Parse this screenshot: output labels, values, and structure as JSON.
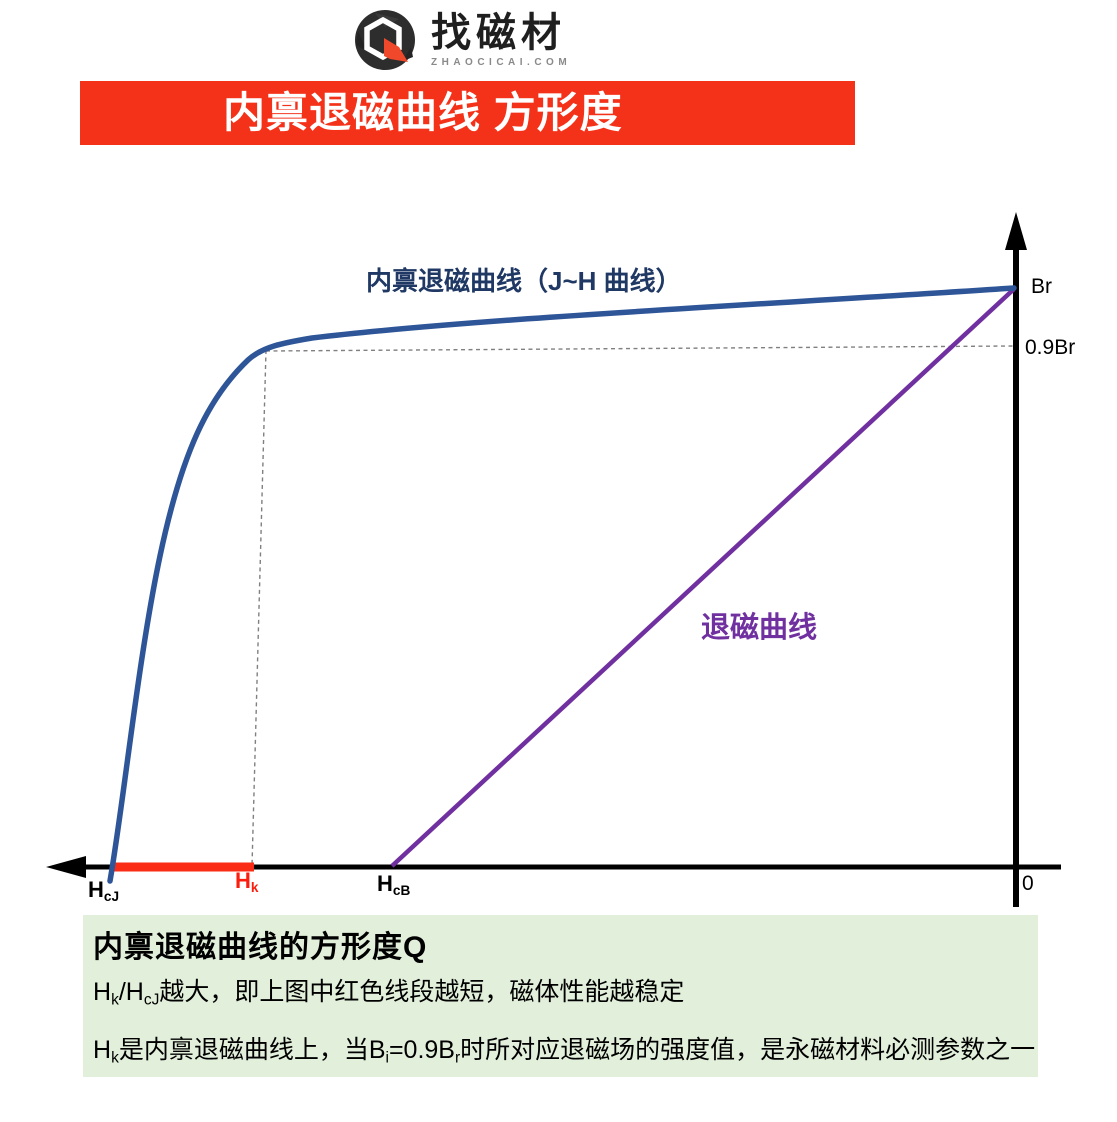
{
  "logo": {
    "brand": "找磁材",
    "domain": "ZHAOCICAI.COM",
    "icon": "hex-cube-logo",
    "colors": {
      "dark": "#2d2d2d",
      "red": "#f0482a"
    }
  },
  "banner": {
    "title": "内禀退磁曲线 方形度",
    "bg": "#f43119",
    "fg": "#ffffff"
  },
  "chart": {
    "labels": {
      "jh_curve": "内禀退磁曲线（J~H 曲线）",
      "demag_curve": "退磁曲线",
      "br": "Br",
      "p9br": "0.9Br",
      "zero": "0",
      "hcj": {
        "main": "H",
        "sub": "cJ"
      },
      "hk": {
        "main": "H",
        "sub": "k"
      },
      "hcb": {
        "main": "H",
        "sub": "cB"
      }
    },
    "colors": {
      "jh_curve": "#2e5597",
      "jh_label": "#1f3864",
      "demag_line": "#7030a0",
      "axis": "#000000",
      "red_segment": "#fb2c16",
      "dashed_guide": "#808080"
    }
  },
  "chart_data": {
    "type": "line",
    "title": "内禀退磁曲线 方形度",
    "orientation": "demagnetizing field H increases to the left; origin (0) at right where both curves meet vertical axis",
    "x_ticks": [
      "HcJ",
      "Hk",
      "HcB",
      "0"
    ],
    "y_ticks": [
      "Br",
      "0.9Br"
    ],
    "x_tick_positions_H_over_HcJ": {
      "HcJ": 1.0,
      "Hk": 0.85,
      "HcB": 0.69,
      "0": 0
    },
    "series": [
      {
        "name": "内禀退磁曲线（J~H 曲线）",
        "color": "#2e5597",
        "units": "x = H/HcJ, y = J/Br",
        "points": [
          [
            1.0,
            0
          ],
          [
            0.98,
            0.32
          ],
          [
            0.95,
            0.55
          ],
          [
            0.92,
            0.73
          ],
          [
            0.88,
            0.82
          ],
          [
            0.83,
            0.9
          ],
          [
            0.68,
            0.94
          ],
          [
            0.35,
            0.97
          ],
          [
            0,
            1.0
          ]
        ]
      },
      {
        "name": "退磁曲线",
        "color": "#7030a0",
        "units": "x = H/HcJ, y = B/Br",
        "shape": "straight",
        "points": [
          [
            0.69,
            0
          ],
          [
            0,
            1.0
          ]
        ]
      }
    ],
    "annotations": [
      "red highlighted segment on H axis from HcJ to Hk",
      "dashed guide lines from knee point (Hk, 0.9Br) to the H axis and to the vertical axis"
    ],
    "legend_position": "labels placed next to curves",
    "grid": false
  },
  "notes": {
    "bg": "#e2efda",
    "title": "内禀退磁曲线的方形度Q",
    "line2": [
      {
        "t": "H"
      },
      {
        "t": "k",
        "sub": true
      },
      {
        "t": "/H"
      },
      {
        "t": "cJ",
        "sub": true
      },
      {
        "t": "越大，即上图中红色线段越短，磁体性能越稳定"
      }
    ],
    "line3": [
      {
        "t": "H"
      },
      {
        "t": "k",
        "sub": true
      },
      {
        "t": "是内禀退磁曲线上，当B"
      },
      {
        "t": "i",
        "sub": true
      },
      {
        "t": "=0.9B"
      },
      {
        "t": "r",
        "sub": true
      },
      {
        "t": "时所对应退磁场的强度值，是永磁材料必测参数之一"
      }
    ]
  }
}
